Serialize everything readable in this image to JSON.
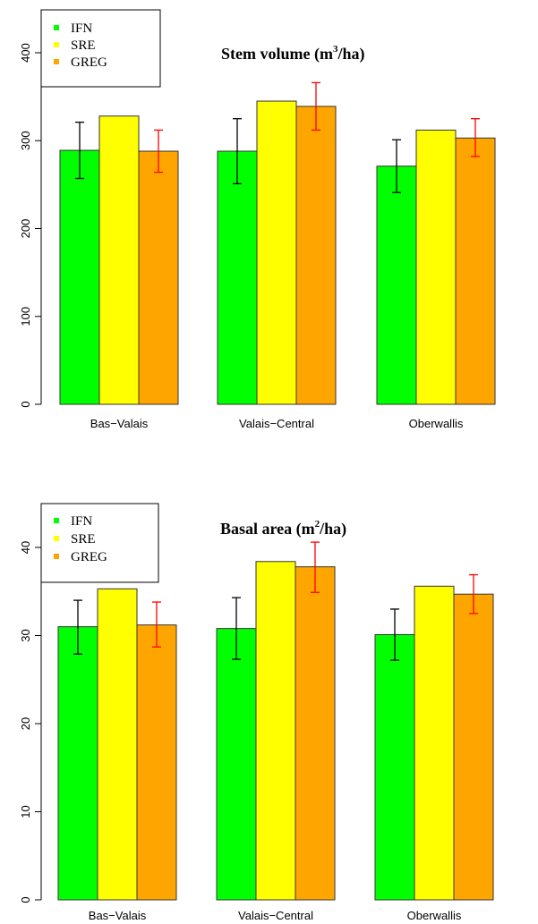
{
  "chart_data": [
    {
      "type": "bar",
      "title_prefix": "Stem volume (m",
      "title_sup": "3",
      "title_suffix": "/ha)",
      "categories": [
        "Bas−Valais",
        "Valais−Central",
        "Oberwallis"
      ],
      "series": [
        {
          "name": "IFN",
          "color": "#00ff00",
          "values": [
            289,
            288,
            271
          ],
          "err_low": [
            257,
            251,
            241
          ],
          "err_high": [
            321,
            325,
            301
          ],
          "err_color": "#000000"
        },
        {
          "name": "SRE",
          "color": "#ffff00",
          "values": [
            328,
            345,
            312
          ],
          "err_low": null,
          "err_high": null
        },
        {
          "name": "GREG",
          "color": "#ffa500",
          "values": [
            288,
            339,
            303
          ],
          "err_low": [
            264,
            312,
            282
          ],
          "err_high": [
            312,
            366,
            325
          ],
          "err_color": "#ff0000"
        }
      ],
      "yticks": [
        0,
        100,
        200,
        300,
        400
      ],
      "ylim": [
        0,
        420
      ],
      "legend_position": "top-left"
    },
    {
      "type": "bar",
      "title_prefix": "Basal area (m",
      "title_sup": "2",
      "title_suffix": "/ha)",
      "categories": [
        "Bas−Valais",
        "Valais−Central",
        "Oberwallis"
      ],
      "series": [
        {
          "name": "IFN",
          "color": "#00ff00",
          "values": [
            31.0,
            30.8,
            30.1
          ],
          "err_low": [
            27.9,
            27.3,
            27.2
          ],
          "err_high": [
            34.0,
            34.3,
            33.0
          ],
          "err_color": "#000000"
        },
        {
          "name": "SRE",
          "color": "#ffff00",
          "values": [
            35.3,
            38.4,
            35.6
          ],
          "err_low": null,
          "err_high": null
        },
        {
          "name": "GREG",
          "color": "#ffa500",
          "values": [
            31.2,
            37.8,
            34.7
          ],
          "err_low": [
            28.7,
            34.9,
            32.5
          ],
          "err_high": [
            33.8,
            40.6,
            36.9
          ],
          "err_color": "#ff0000"
        }
      ],
      "yticks": [
        0,
        10,
        20,
        30,
        40
      ],
      "ylim": [
        0,
        43
      ],
      "legend_position": "top-left"
    }
  ]
}
